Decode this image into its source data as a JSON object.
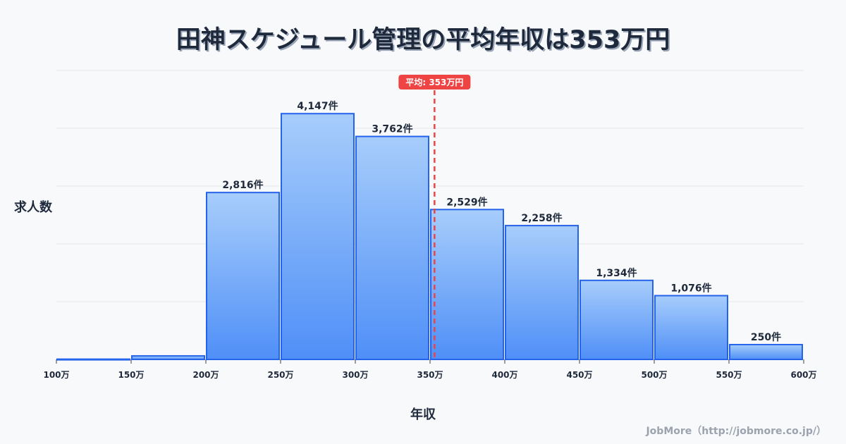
{
  "title": "田神スケジュール管理の平均年収は353万円",
  "y_axis_label": "求人数",
  "x_axis_label": "年収",
  "credit": "JobMore（http://jobmore.co.jp/）",
  "average_marker": {
    "label": "平均: 353万円",
    "value": 353,
    "color": "#ef4444"
  },
  "colors": {
    "bar_top": "#a7cdfb",
    "bar_bottom": "#4f8ff7",
    "bar_border": "#2563eb",
    "grid": "#e5e7eb",
    "text": "#1e293b"
  },
  "chart_data": {
    "type": "bar",
    "title": "田神スケジュール管理の平均年収は353万円",
    "xlabel": "年収",
    "ylabel": "求人数",
    "x_ticks": [
      "100万",
      "150万",
      "200万",
      "250万",
      "300万",
      "350万",
      "400万",
      "450万",
      "500万",
      "550万",
      "600万"
    ],
    "categories": [
      "100-150万",
      "150-200万",
      "200-250万",
      "250-300万",
      "300-350万",
      "350-400万",
      "400-450万",
      "450-500万",
      "500-550万",
      "550-600万"
    ],
    "values": [
      5,
      60,
      2816,
      4147,
      3762,
      2529,
      2258,
      1334,
      1076,
      250
    ],
    "value_labels": [
      "",
      "",
      "2,816件",
      "4,147件",
      "3,762件",
      "2,529件",
      "2,258件",
      "1,334件",
      "1,076件",
      "250件"
    ],
    "ylim": [
      0,
      4875
    ],
    "grid": true,
    "mean": 353
  }
}
